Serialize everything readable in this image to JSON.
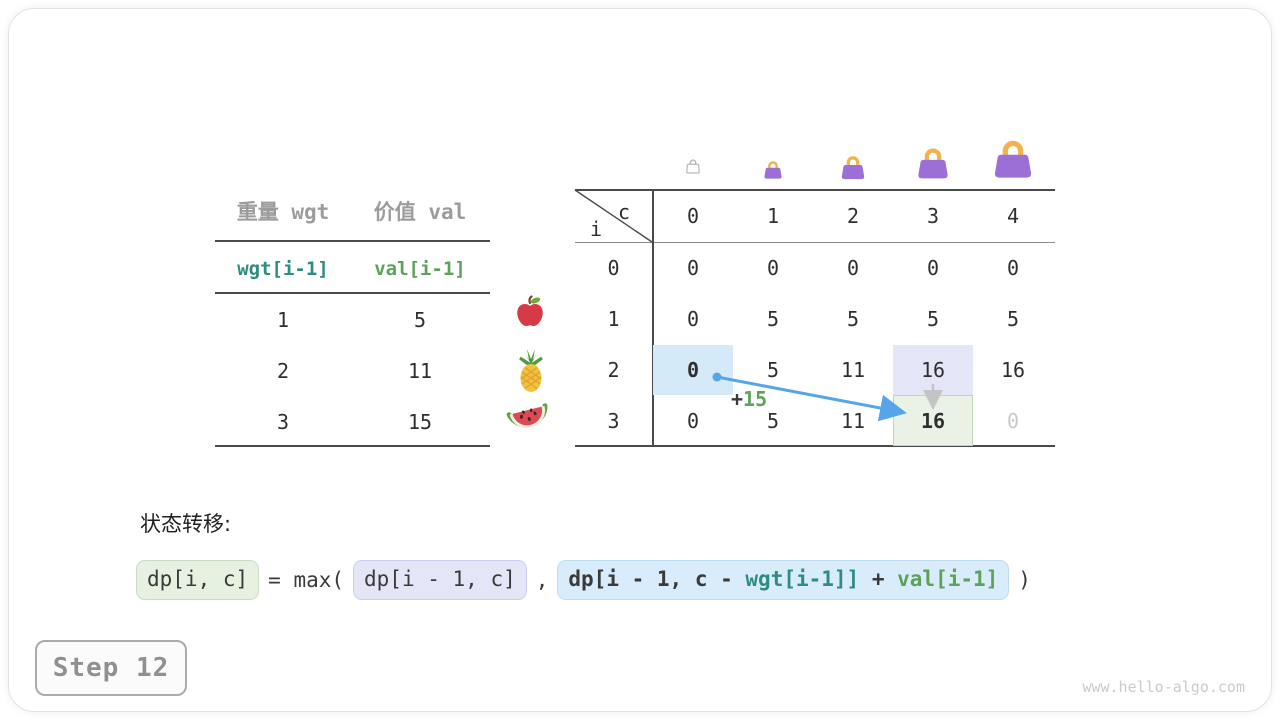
{
  "items_table": {
    "header": {
      "wgt": "重量 wgt",
      "val": "价值 val"
    },
    "var_row": {
      "wgt": "wgt[i-1]",
      "val": "val[i-1]"
    },
    "rows": [
      {
        "wgt": "1",
        "val": "5",
        "fruit": "apple"
      },
      {
        "wgt": "2",
        "val": "11",
        "fruit": "pineapple"
      },
      {
        "wgt": "3",
        "val": "15",
        "fruit": "watermelon"
      }
    ]
  },
  "dp_table": {
    "corner_col": "c",
    "corner_row": "i",
    "col_headers": [
      "0",
      "1",
      "2",
      "3",
      "4"
    ],
    "row_headers": [
      "0",
      "1",
      "2",
      "3"
    ],
    "cells": [
      [
        "0",
        "0",
        "0",
        "0",
        "0"
      ],
      [
        "0",
        "5",
        "5",
        "5",
        "5"
      ],
      [
        "0",
        "5",
        "11",
        "16",
        "16"
      ],
      [
        "0",
        "5",
        "11",
        "16",
        "0"
      ]
    ],
    "cell_classes": [
      [
        "",
        "",
        "",
        "",
        ""
      ],
      [
        "",
        "",
        "",
        "",
        ""
      ],
      [
        "bold bg-blue",
        "",
        "",
        "bg-lavender",
        ""
      ],
      [
        "",
        "",
        "",
        "bold bg-green",
        "faded"
      ]
    ],
    "bags": [
      "empty-bag",
      "bag-small",
      "bag-medium",
      "bag-large",
      "bag-xlarge"
    ],
    "transition": {
      "plus": "+",
      "value": "15"
    }
  },
  "formula": {
    "label": "状态转移:",
    "lhs": "dp[i, c]",
    "eq_max": "= max(",
    "arg1": "dp[i - 1, c]",
    "comma": ",",
    "arg2": {
      "p1": "dp[i - 1, c - ",
      "p2": "wgt[i-1]]",
      "p3": " + ",
      "p4": "val[i-1]"
    },
    "close": ")"
  },
  "step_label": "Step 12",
  "watermark": "www.hello-algo.com",
  "colors": {
    "accent_blue_arrow": "#57a4e9",
    "highlight_blue": "#d5eaf9",
    "highlight_lavender": "#e4e5f7",
    "highlight_green": "#e9f2e5",
    "teal_code": "#2e8c80",
    "green_code": "#5ea25a",
    "bag_purple": "#9b6fd6",
    "bag_handle": "#f2b24c",
    "faded_text": "#c9c9c9"
  }
}
